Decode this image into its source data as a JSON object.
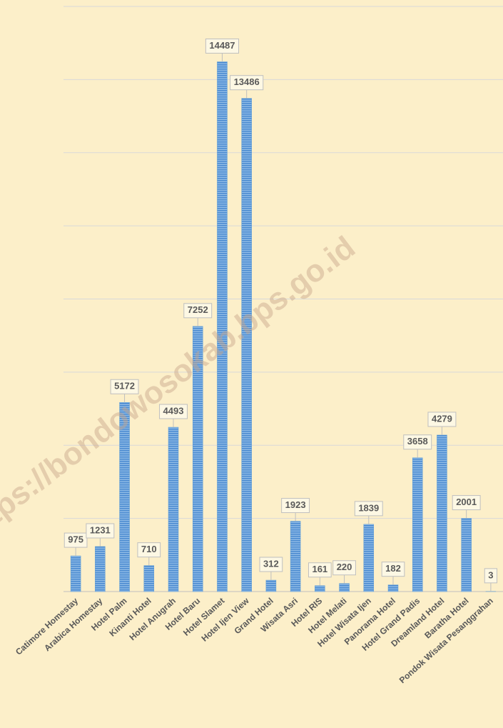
{
  "chart_data": {
    "type": "bar",
    "watermark": "https://bondowosokab.bps.go.id",
    "categories": [
      "Catimore Homestay",
      "Arabica Homestay",
      "Hotel Palm",
      "Kinanti Hotel",
      "Hotel Anugrah",
      "Hotel Baru",
      "Hotel Slamet",
      "Hotel Ijen View",
      "Grand Hotel",
      "Wisata Asri",
      "Hotel RIS",
      "Hotel Melati",
      "Hotel Wisata Ijen",
      "Panorama Hotel",
      "Hotel Grand Padis",
      "Dreamland Hotel",
      "Baratha Hotel",
      "Pondok Wisata Pesanggrahan"
    ],
    "values": [
      975,
      1231,
      5172,
      710,
      4493,
      7252,
      14487,
      13486,
      312,
      1923,
      161,
      220,
      1839,
      182,
      3658,
      4279,
      2001,
      3
    ],
    "color": "#5b9bd5",
    "ylim": [
      0,
      16000
    ],
    "yticks": [
      0,
      2000,
      4000,
      6000,
      8000,
      10000,
      12000,
      14000,
      16000
    ],
    "grid": true
  }
}
